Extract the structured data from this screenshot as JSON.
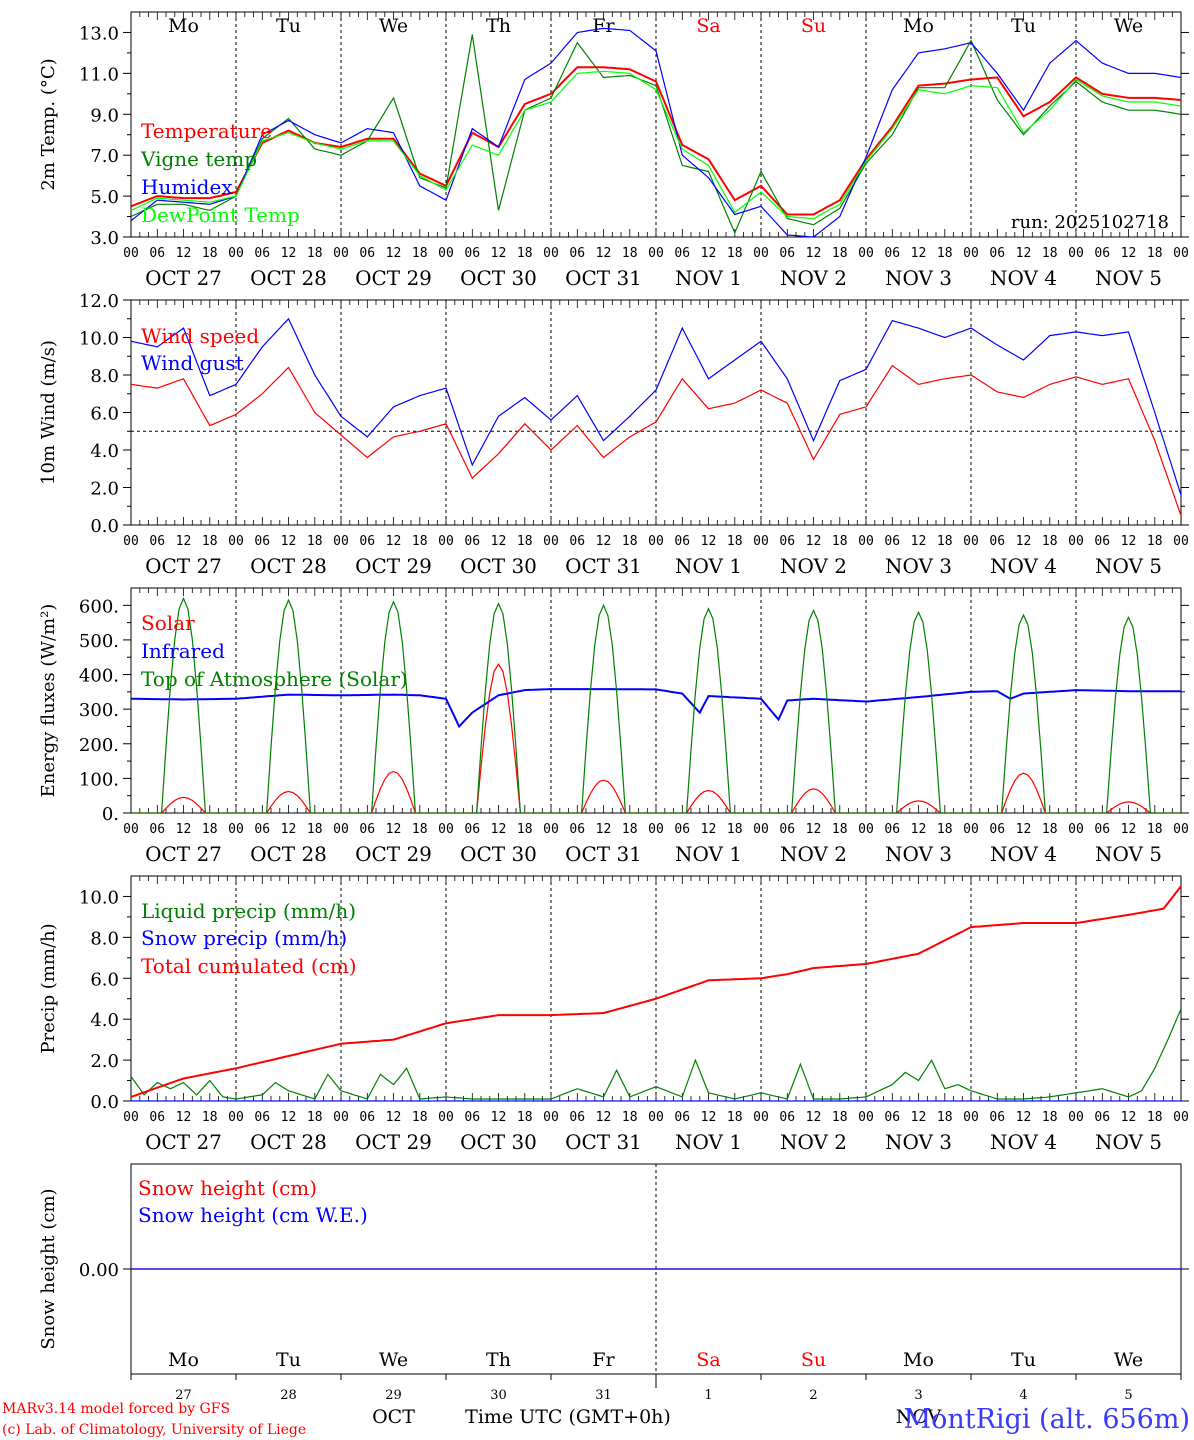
{
  "meteogram": {
    "day_names": [
      "Mo",
      "Tu",
      "We",
      "Th",
      "Fr",
      "Sa",
      "Su",
      "Mo",
      "Tu",
      "We"
    ],
    "date_labels": [
      "OCT 27",
      "OCT 28",
      "OCT 29",
      "OCT 30",
      "OCT 31",
      "NOV  1",
      "NOV  2",
      "NOV  3",
      "NOV  4",
      "NOV  5"
    ],
    "hour_ticks": [
      "00",
      "06",
      "12",
      "18"
    ],
    "day_numbers": [
      "27",
      "28",
      "29",
      "30",
      "31",
      "1",
      "2",
      "3",
      "4",
      "5"
    ],
    "month_labels": [
      "OCT",
      "NOV"
    ],
    "x_axis_title": "Time UTC (GMT+0h)",
    "credit_model": "MARv3.14 model forced by GFS",
    "credit_lab": "(c) Lab. of Climatology, University of Liege",
    "location": "MontRigi (alt. 656m)",
    "run": "run: 2025102718",
    "weekend_color": "#ff0000"
  },
  "chart_data": [
    {
      "type": "line",
      "title": "",
      "ylabel": "2m Temp. (°C)",
      "xlabel": "",
      "ylim": [
        3,
        14
      ],
      "yticks": [
        3.0,
        5.0,
        7.0,
        9.0,
        11.0,
        13.0
      ],
      "ytick_labels": [
        "3.0",
        "5.0",
        "7.0",
        "9.0",
        "11.0",
        "13.0"
      ],
      "x_unit": "hours since OCT 27 00 UTC",
      "series": [
        {
          "name": "Temperature",
          "color": "#ff0000",
          "x": [
            0,
            6,
            12,
            18,
            24,
            30,
            36,
            42,
            48,
            54,
            60,
            66,
            72,
            78,
            84,
            90,
            96,
            102,
            108,
            114,
            120,
            126,
            132,
            138,
            144,
            150,
            156,
            162,
            168,
            174,
            180,
            186,
            192,
            198,
            204,
            210,
            216,
            222,
            228,
            234,
            240
          ],
          "values": [
            4.5,
            5.0,
            4.9,
            4.9,
            5.2,
            7.6,
            8.2,
            7.6,
            7.4,
            7.8,
            7.8,
            6.1,
            5.5,
            8.1,
            7.4,
            9.5,
            10.0,
            11.3,
            11.3,
            11.2,
            10.6,
            7.5,
            6.8,
            4.8,
            5.5,
            4.1,
            4.1,
            4.8,
            6.8,
            8.4,
            10.4,
            10.5,
            10.7,
            10.8,
            8.9,
            9.6,
            10.8,
            10.0,
            9.8,
            9.8,
            9.7
          ]
        },
        {
          "name": "Vigne temp",
          "color": "#008000",
          "x": [
            0,
            6,
            12,
            18,
            24,
            30,
            36,
            42,
            48,
            54,
            60,
            66,
            72,
            78,
            84,
            90,
            96,
            102,
            108,
            114,
            120,
            126,
            132,
            138,
            144,
            150,
            156,
            162,
            168,
            174,
            180,
            186,
            192,
            198,
            204,
            210,
            216,
            222,
            228,
            234,
            240
          ],
          "values": [
            4.0,
            4.6,
            4.6,
            4.3,
            5.0,
            7.8,
            8.8,
            7.3,
            7.0,
            7.7,
            9.8,
            5.9,
            5.4,
            12.9,
            4.3,
            9.2,
            9.8,
            12.5,
            10.8,
            10.9,
            10.4,
            6.5,
            6.2,
            3.2,
            6.2,
            3.9,
            3.6,
            4.4,
            6.6,
            8.0,
            10.3,
            10.3,
            12.6,
            9.7,
            8.0,
            9.4,
            10.6,
            9.6,
            9.2,
            9.2,
            9.0
          ]
        },
        {
          "name": "Humidex",
          "color": "#0000ff",
          "x": [
            0,
            6,
            12,
            18,
            24,
            30,
            36,
            42,
            48,
            54,
            60,
            66,
            72,
            78,
            84,
            90,
            96,
            102,
            108,
            114,
            120,
            126,
            132,
            138,
            144,
            150,
            156,
            162,
            168,
            174,
            180,
            186,
            192,
            198,
            204,
            210,
            216,
            222,
            228,
            234,
            240
          ],
          "values": [
            3.8,
            4.8,
            4.7,
            4.6,
            5.0,
            8.0,
            8.7,
            8.0,
            7.6,
            8.3,
            8.1,
            5.5,
            4.8,
            8.3,
            7.4,
            10.7,
            11.5,
            13.0,
            13.2,
            13.1,
            12.1,
            7.0,
            5.9,
            4.1,
            4.5,
            3.1,
            3.0,
            4.0,
            6.9,
            10.2,
            12.0,
            12.2,
            12.5,
            11.0,
            9.2,
            11.5,
            12.6,
            11.5,
            11.0,
            11.0,
            10.8
          ]
        },
        {
          "name": "DewPoint Temp",
          "color": "#00ff00",
          "x": [
            0,
            6,
            12,
            18,
            24,
            30,
            36,
            42,
            48,
            54,
            60,
            66,
            72,
            78,
            84,
            90,
            96,
            102,
            108,
            114,
            120,
            126,
            132,
            138,
            144,
            150,
            156,
            162,
            168,
            174,
            180,
            186,
            192,
            198,
            204,
            210,
            216,
            222,
            228,
            234,
            240
          ],
          "values": [
            4.3,
            4.9,
            4.8,
            4.7,
            5.0,
            7.7,
            8.1,
            7.6,
            7.3,
            7.7,
            7.7,
            6.0,
            5.3,
            7.5,
            7.0,
            9.2,
            9.6,
            11.0,
            11.1,
            11.0,
            10.2,
            7.3,
            6.5,
            4.2,
            5.2,
            4.0,
            3.9,
            4.6,
            6.7,
            8.3,
            10.2,
            10.0,
            10.4,
            10.3,
            8.1,
            9.2,
            10.7,
            9.9,
            9.6,
            9.6,
            9.4
          ]
        }
      ]
    },
    {
      "type": "line",
      "title": "",
      "ylabel": "10m Wind (m/s)",
      "xlabel": "",
      "ylim": [
        0,
        12
      ],
      "yticks": [
        0.0,
        2.0,
        4.0,
        6.0,
        8.0,
        10.0,
        12.0
      ],
      "ytick_labels": [
        "0.0",
        "2.0",
        "4.0",
        "6.0",
        "8.0",
        "10.0",
        "12.0"
      ],
      "reference_line": 5.0,
      "x_unit": "hours since OCT 27 00 UTC",
      "series": [
        {
          "name": "Wind speed",
          "color": "#ff0000",
          "x": [
            0,
            6,
            12,
            18,
            24,
            30,
            36,
            42,
            48,
            54,
            60,
            66,
            72,
            78,
            84,
            90,
            96,
            102,
            108,
            114,
            120,
            126,
            132,
            138,
            144,
            150,
            156,
            162,
            168,
            174,
            180,
            186,
            192,
            198,
            204,
            210,
            216,
            222,
            228,
            234,
            240
          ],
          "values": [
            7.5,
            7.3,
            7.8,
            5.3,
            5.9,
            7.0,
            8.4,
            6.0,
            4.8,
            3.6,
            4.7,
            5.0,
            5.4,
            2.5,
            3.8,
            5.4,
            4.0,
            5.3,
            3.6,
            4.7,
            5.5,
            7.8,
            6.2,
            6.5,
            7.2,
            6.5,
            3.5,
            5.9,
            6.3,
            8.5,
            7.5,
            7.8,
            8.0,
            7.1,
            6.8,
            7.5,
            7.9,
            7.5,
            7.8,
            4.5,
            0.5
          ]
        },
        {
          "name": "Wind gust",
          "color": "#0000ff",
          "x": [
            0,
            6,
            12,
            18,
            24,
            30,
            36,
            42,
            48,
            54,
            60,
            66,
            72,
            78,
            84,
            90,
            96,
            102,
            108,
            114,
            120,
            126,
            132,
            138,
            144,
            150,
            156,
            162,
            168,
            174,
            180,
            186,
            192,
            198,
            204,
            210,
            216,
            222,
            228,
            234,
            240
          ],
          "values": [
            9.8,
            9.5,
            10.5,
            6.9,
            7.5,
            9.5,
            11.0,
            8.0,
            5.8,
            4.7,
            6.3,
            6.9,
            7.3,
            3.2,
            5.8,
            6.8,
            5.6,
            6.9,
            4.5,
            5.8,
            7.2,
            10.5,
            7.8,
            8.8,
            9.8,
            7.8,
            4.5,
            7.7,
            8.3,
            10.9,
            10.5,
            10.0,
            10.5,
            9.6,
            8.8,
            10.1,
            10.3,
            10.1,
            10.3,
            6.0,
            1.6
          ]
        }
      ]
    },
    {
      "type": "line",
      "title": "",
      "ylabel": "Energy fluxes (W/m²)",
      "xlabel": "",
      "ylim": [
        0,
        650
      ],
      "yticks": [
        0,
        100,
        200,
        300,
        400,
        500,
        600
      ],
      "ytick_labels": [
        "0.",
        "100.",
        "200.",
        "300.",
        "400.",
        "500.",
        "600."
      ],
      "x_unit": "hours since OCT 27 00 UTC",
      "series": [
        {
          "name": "Solar",
          "color": "#ff0000",
          "day_peak_hour": 12,
          "day_peak_values": [
            45,
            62,
            120,
            430,
            95,
            65,
            70,
            35,
            115,
            32
          ],
          "day_span_hours": [
            7,
            17
          ]
        },
        {
          "name": "Infrared",
          "color": "#0000ff",
          "x": [
            0,
            12,
            24,
            36,
            48,
            60,
            66,
            72,
            75,
            78,
            84,
            90,
            96,
            108,
            120,
            126,
            130,
            132,
            144,
            148,
            150,
            156,
            168,
            180,
            192,
            198,
            201,
            204,
            216,
            228,
            240
          ],
          "values": [
            330,
            328,
            330,
            342,
            340,
            342,
            340,
            330,
            250,
            290,
            340,
            355,
            358,
            358,
            357,
            345,
            290,
            338,
            330,
            270,
            325,
            330,
            322,
            335,
            350,
            352,
            330,
            345,
            355,
            352,
            352
          ]
        },
        {
          "name": "Top of Atmosphere (Solar)",
          "color": "#008000",
          "day_peak_hour": 12,
          "day_peak_values": [
            620,
            615,
            610,
            605,
            600,
            590,
            585,
            580,
            572,
            565
          ],
          "day_span_hours": [
            7,
            17
          ]
        }
      ]
    },
    {
      "type": "line",
      "title": "",
      "ylabel": "Precip (mm/h)",
      "xlabel": "",
      "ylim": [
        0,
        11
      ],
      "yticks": [
        0.0,
        2.0,
        4.0,
        6.0,
        8.0,
        10.0
      ],
      "ytick_labels": [
        "0.0",
        "2.0",
        "4.0",
        "6.0",
        "8.0",
        "10.0"
      ],
      "x_unit": "hours since OCT 27 00 UTC",
      "series": [
        {
          "name": "Liquid precip (mm/h)",
          "color": "#008000",
          "x": [
            0,
            3,
            6,
            9,
            12,
            15,
            18,
            21,
            24,
            30,
            33,
            36,
            42,
            45,
            48,
            54,
            57,
            60,
            63,
            66,
            72,
            78,
            84,
            90,
            96,
            102,
            108,
            111,
            114,
            120,
            126,
            129,
            132,
            138,
            144,
            150,
            153,
            156,
            162,
            168,
            174,
            177,
            180,
            183,
            186,
            189,
            192,
            198,
            204,
            210,
            216,
            222,
            228,
            231,
            234,
            237,
            240
          ],
          "values": [
            1.2,
            0.3,
            0.9,
            0.6,
            0.9,
            0.3,
            1.0,
            0.2,
            0.1,
            0.3,
            0.9,
            0.5,
            0.1,
            1.3,
            0.5,
            0.1,
            1.3,
            0.8,
            1.6,
            0.1,
            0.2,
            0.1,
            0.1,
            0.1,
            0.1,
            0.6,
            0.2,
            1.5,
            0.2,
            0.7,
            0.2,
            2.0,
            0.4,
            0.1,
            0.4,
            0.1,
            1.8,
            0.1,
            0.1,
            0.2,
            0.8,
            1.4,
            1.0,
            2.0,
            0.6,
            0.8,
            0.5,
            0.1,
            0.1,
            0.2,
            0.4,
            0.6,
            0.2,
            0.5,
            1.6,
            3.0,
            4.5
          ]
        },
        {
          "name": "Snow precip (mm/h)",
          "color": "#0000ff",
          "x": [
            0,
            240
          ],
          "values": [
            0.0,
            0.0
          ]
        },
        {
          "name": "Total cumulated (cm)",
          "color": "#ff0000",
          "x": [
            0,
            12,
            24,
            36,
            48,
            60,
            72,
            84,
            96,
            108,
            120,
            132,
            144,
            150,
            156,
            168,
            180,
            192,
            204,
            216,
            228,
            236,
            240
          ],
          "values": [
            0.2,
            1.1,
            1.6,
            2.2,
            2.8,
            3.0,
            3.8,
            4.2,
            4.2,
            4.3,
            5.0,
            5.9,
            6.0,
            6.2,
            6.5,
            6.7,
            7.2,
            8.5,
            8.7,
            8.7,
            9.1,
            9.4,
            10.5
          ]
        }
      ]
    },
    {
      "type": "line",
      "title": "",
      "ylabel": "Snow height (cm)",
      "xlabel": "",
      "yticks": [
        0.0
      ],
      "ytick_labels": [
        "0.00"
      ],
      "x_unit": "hours since OCT 27 00 UTC",
      "series": [
        {
          "name": "Snow height (cm)",
          "color": "#ff0000",
          "x": [
            0,
            240
          ],
          "values": [
            0.0,
            0.0
          ]
        },
        {
          "name": "Snow height (cm W.E.)",
          "color": "#0000ff",
          "x": [
            0,
            240
          ],
          "values": [
            0.0,
            0.0
          ]
        }
      ]
    }
  ]
}
